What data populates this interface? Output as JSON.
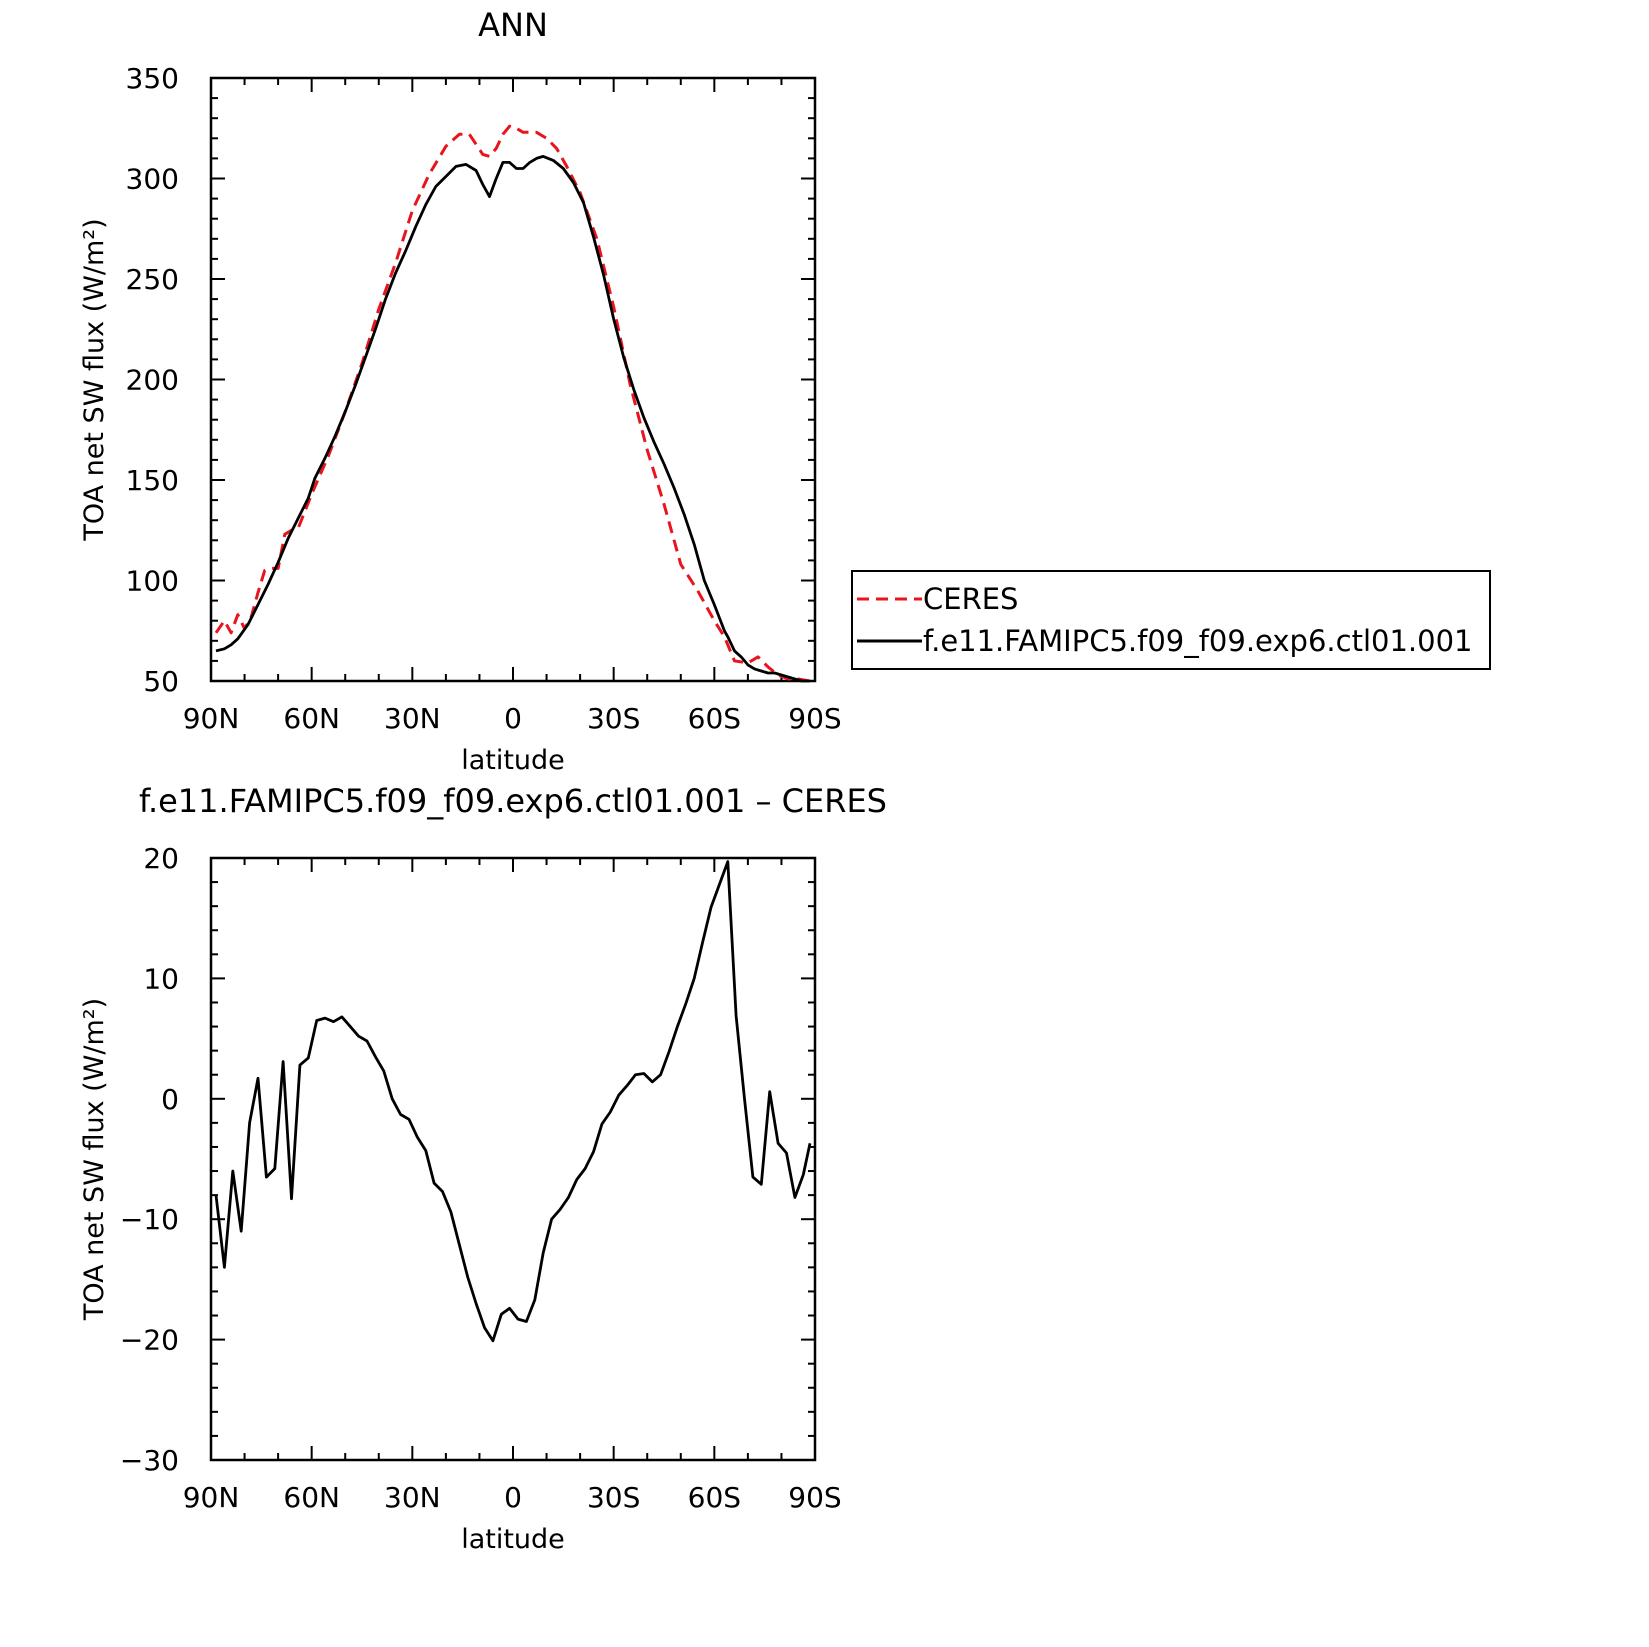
{
  "chart_data": [
    {
      "type": "line",
      "title": "ANN",
      "xlabel": "latitude",
      "ylabel": "TOA net SW flux (W/m²)",
      "xlim": [
        90,
        -90
      ],
      "ylim": [
        50,
        350
      ],
      "xticks": [
        90,
        60,
        30,
        0,
        -30,
        -60,
        -90
      ],
      "xtick_labels": [
        "90N",
        "60N",
        "30N",
        "0",
        "30S",
        "60S",
        "90S"
      ],
      "yticks": [
        50,
        100,
        150,
        200,
        250,
        300,
        350
      ],
      "ytick_labels": [
        "50",
        "100",
        "150",
        "200",
        "250",
        "300",
        "350"
      ],
      "legend_position": "right",
      "series": [
        {
          "name": "CERES",
          "color": "#e8141e",
          "dash": "dashed",
          "x": [
            88.5,
            86,
            84,
            82,
            80,
            78,
            76,
            74,
            72,
            70,
            68,
            66,
            64,
            60,
            55,
            50,
            45,
            40,
            35,
            30,
            25,
            20,
            16,
            13,
            11,
            9,
            7,
            5,
            3,
            1,
            -1,
            -3,
            -5,
            -7,
            -10,
            -13,
            -16,
            -20,
            -25,
            -30,
            -35,
            -40,
            -45,
            -50,
            -55,
            -60,
            -63,
            -66,
            -70,
            -73,
            -76,
            -79,
            -82,
            -85,
            -88.5
          ],
          "y": [
            74,
            80,
            74,
            83,
            76,
            82,
            94,
            105,
            106,
            106,
            123,
            125,
            126,
            143,
            162,
            184,
            208,
            235,
            258,
            284,
            302,
            316,
            322,
            322,
            317,
            312,
            311,
            315,
            322,
            326,
            325,
            323,
            323,
            323,
            320,
            315,
            306,
            293,
            270,
            236,
            197,
            165,
            138,
            108,
            95,
            80,
            72,
            60,
            59,
            62,
            57,
            53,
            51,
            51,
            50
          ]
        },
        {
          "name": "f.e11.FAMIPC5.f09_f09.exp6.ctl01.001",
          "color": "#000000",
          "dash": "solid",
          "x": [
            88.5,
            86,
            84,
            82,
            79,
            76,
            73,
            70,
            67,
            64,
            61,
            59,
            56,
            53,
            50,
            47,
            44,
            41,
            38,
            35,
            32,
            29,
            26,
            23,
            20,
            17,
            14,
            11,
            9,
            7,
            5,
            3,
            1,
            -1,
            -3,
            -5,
            -7,
            -9,
            -12,
            -15,
            -18,
            -21,
            -24,
            -27,
            -30,
            -33,
            -36,
            -39,
            -42,
            -45,
            -48,
            -51,
            -54,
            -57,
            -60,
            -63,
            -64,
            -66,
            -68,
            -70,
            -72,
            -74,
            -76,
            -78,
            -80,
            -82,
            -84,
            -86,
            -88.5
          ],
          "y": [
            65,
            66,
            68,
            71,
            78,
            88,
            98,
            109,
            121,
            131,
            141,
            151,
            161,
            172,
            184,
            197,
            211,
            225,
            240,
            253,
            264,
            276,
            287,
            296,
            301,
            306,
            307,
            304,
            297,
            291,
            300,
            308,
            308,
            305,
            305,
            308,
            310,
            311,
            309,
            305,
            298,
            288,
            271,
            252,
            230,
            211,
            195,
            181,
            169,
            158,
            146,
            133,
            118,
            100,
            88,
            75,
            72,
            65,
            62,
            58,
            56,
            55,
            54,
            54,
            53,
            52,
            51,
            50,
            50
          ]
        }
      ]
    },
    {
      "type": "line",
      "title": "f.e11.FAMIPC5.f09_f09.exp6.ctl01.001 – CERES",
      "xlabel": "latitude",
      "ylabel": "TOA net SW flux (W/m²)",
      "xlim": [
        90,
        -90
      ],
      "ylim": [
        -30,
        20
      ],
      "xticks": [
        90,
        60,
        30,
        0,
        -30,
        -60,
        -90
      ],
      "xtick_labels": [
        "90N",
        "60N",
        "30N",
        "0",
        "30S",
        "60S",
        "90S"
      ],
      "yticks": [
        -30,
        -20,
        -10,
        0,
        10,
        20
      ],
      "ytick_labels": [
        "−30",
        "−20",
        "−10",
        "0",
        "10",
        "20"
      ],
      "series": [
        {
          "color": "#000000",
          "dash": "solid",
          "x": [
            88.5,
            86,
            83.5,
            81,
            78.5,
            76,
            73.5,
            71,
            68.5,
            66,
            63.5,
            61,
            58.5,
            56,
            53.5,
            51,
            48.5,
            46,
            43.5,
            41,
            38.5,
            36,
            33.5,
            31,
            28.5,
            26,
            23.5,
            21,
            18.5,
            16,
            13.5,
            11,
            8.5,
            6,
            3.5,
            1,
            -1.5,
            -4,
            -6.5,
            -9,
            -11.5,
            -14,
            -16.5,
            -19,
            -21.5,
            -24,
            -26.5,
            -29,
            -31.5,
            -34,
            -36.5,
            -39,
            -41.5,
            -44,
            -46.5,
            -49,
            -51.5,
            -54,
            -56.5,
            -59,
            -61.5,
            -64,
            -66.5,
            -69,
            -71.5,
            -74,
            -76.5,
            -79,
            -81.5,
            -84,
            -86.5,
            -88.5
          ],
          "y": [
            -8,
            -14,
            -6,
            -11,
            -2,
            1.7,
            -6.5,
            -5.8,
            3.1,
            -8.3,
            2.8,
            3.4,
            6.5,
            6.7,
            6.4,
            6.8,
            6.0,
            5.2,
            4.8,
            3.5,
            2.3,
            0,
            -1.3,
            -1.7,
            -3.2,
            -4.3,
            -7.0,
            -7.7,
            -9.4,
            -12.1,
            -14.8,
            -17.0,
            -19.0,
            -20.1,
            -17.9,
            -17.4,
            -18.3,
            -18.5,
            -16.7,
            -12.8,
            -10.0,
            -9.2,
            -8.2,
            -6.7,
            -5.8,
            -4.4,
            -2.1,
            -1.1,
            0.3,
            1.1,
            2.0,
            2.1,
            1.4,
            2.0,
            3.9,
            6.0,
            7.9,
            10.0,
            13.0,
            15.9,
            17.8,
            19.7,
            6.9,
            0.0,
            -6.5,
            -7.1,
            0.6,
            -3.7,
            -4.5,
            -8.2,
            -6.3,
            -3.7
          ]
        }
      ]
    }
  ]
}
